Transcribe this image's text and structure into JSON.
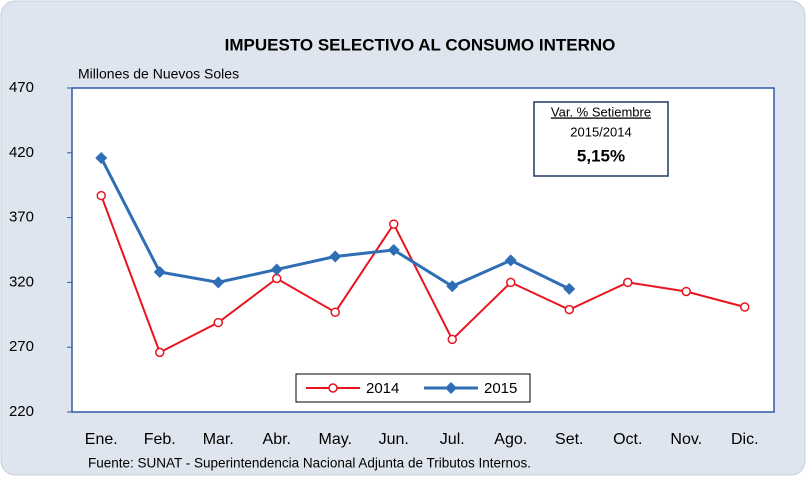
{
  "chart_data": {
    "type": "line",
    "title": "IMPUESTO SELECTIVO AL CONSUMO INTERNO",
    "ylabel": "Millones de Nuevos Soles",
    "source": "Fuente: SUNAT - Superintendencia  Nacional Adjunta de Tributos  Internos.",
    "annotations": [
      "Var. % Setiembre",
      "2015/2014",
      "5,15%"
    ],
    "categories": [
      "Ene.",
      "Feb.",
      "Mar.",
      "Abr.",
      "May.",
      "Jun.",
      "Jul.",
      "Ago.",
      "Set.",
      "Oct.",
      "Nov.",
      "Dic."
    ],
    "series": [
      {
        "name": "2014",
        "color": "#e8141e",
        "marker": "circle",
        "values": [
          387,
          266,
          289,
          323,
          297,
          365,
          276,
          320,
          299,
          320,
          313,
          301
        ]
      },
      {
        "name": "2015",
        "color": "#2f6eb5",
        "marker": "diamond",
        "values": [
          416,
          328,
          320,
          330,
          340,
          345,
          317,
          337,
          315,
          null,
          null,
          null
        ]
      }
    ],
    "ylim": [
      220,
      470
    ],
    "yticks": [
      220,
      270,
      320,
      370,
      420,
      470
    ],
    "grid": false,
    "legend": "lower center"
  }
}
